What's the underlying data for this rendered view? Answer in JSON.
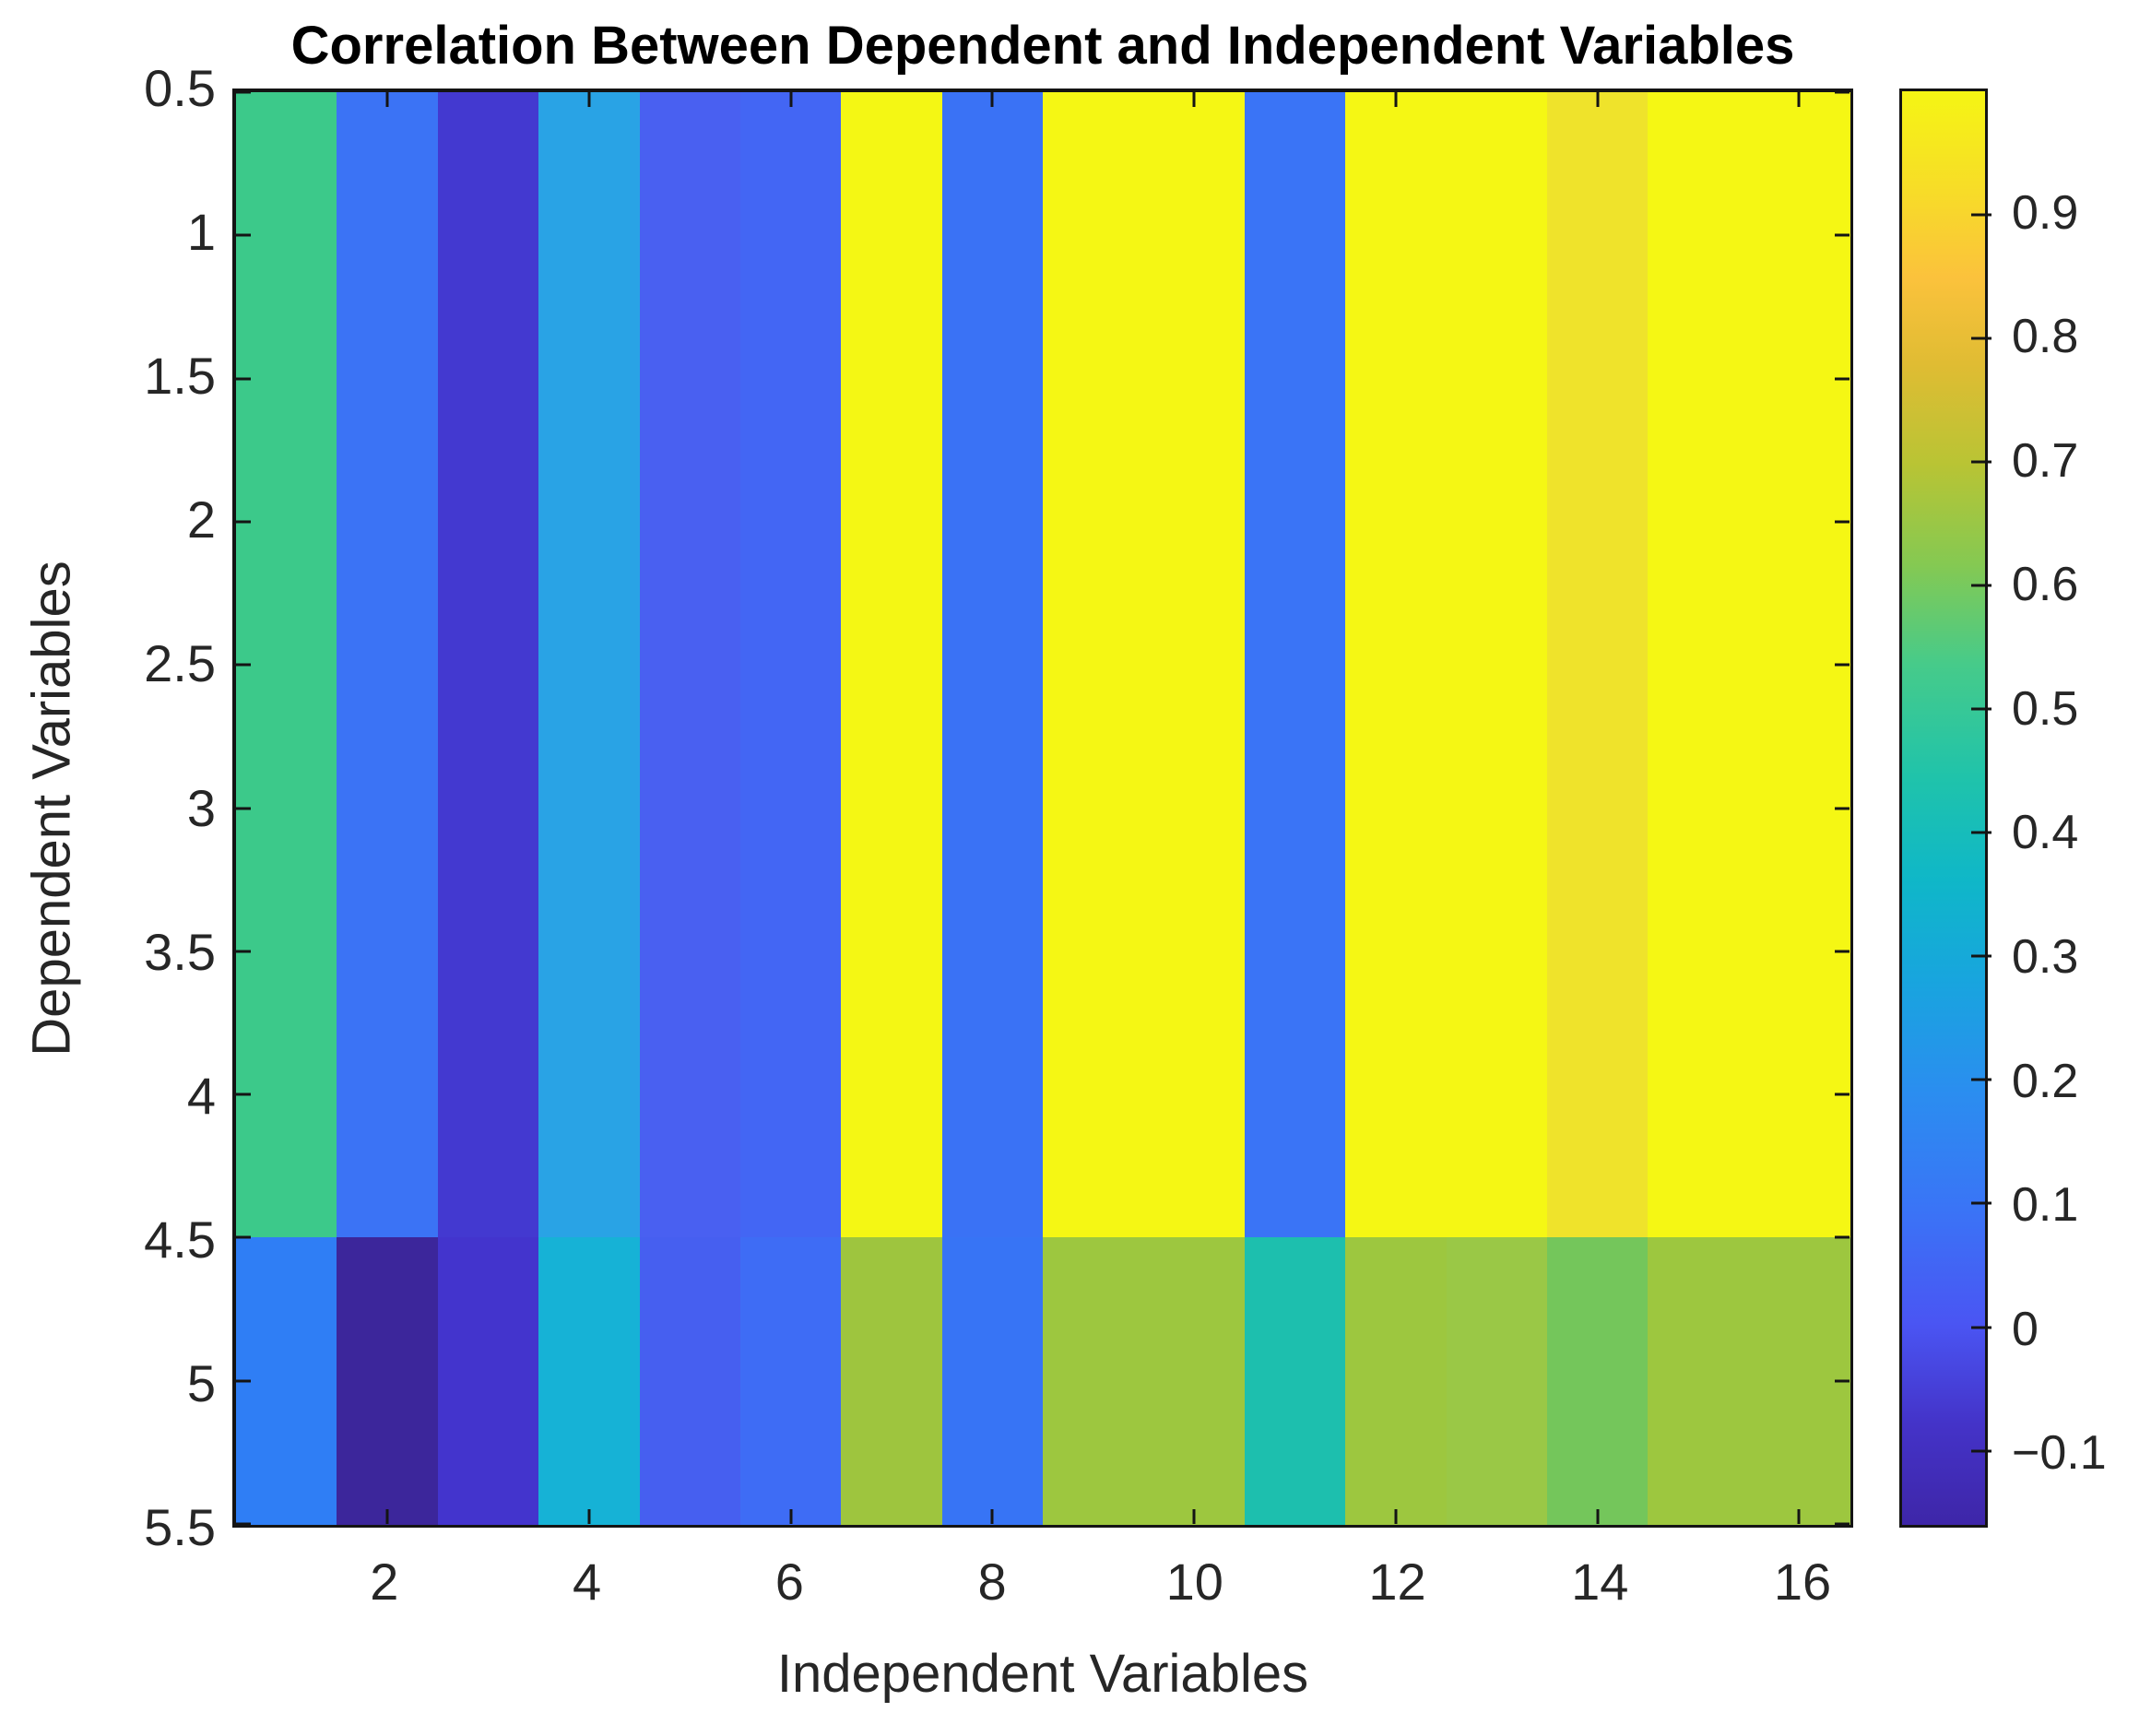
{
  "figure": {
    "title": "Correlation Between Dependent and Independent Variables",
    "xlabel": "Independent Variables",
    "ylabel": "Dependent Variables"
  },
  "colors": {
    "background": "#ffffff",
    "axis": "#141414",
    "tick_text": "#262626",
    "title_text": "#000000"
  },
  "chart_data": {
    "type": "heatmap",
    "title": "Correlation Between Dependent and Independent Variables",
    "xlabel": "Independent Variables",
    "ylabel": "Dependent Variables",
    "x_range": [
      0.5,
      16.5
    ],
    "y_range": [
      0.5,
      5.5
    ],
    "x_ticks": [
      2,
      4,
      6,
      8,
      10,
      12,
      14,
      16
    ],
    "y_ticks": [
      0.5,
      1,
      1.5,
      2,
      2.5,
      3,
      3.5,
      4,
      4.5,
      5,
      5.5
    ],
    "n_independent_vars": 16,
    "n_dependent_vars": 5,
    "colormap": "parula",
    "color_axis_range": [
      -0.16,
      1.0
    ],
    "colorbar_ticks": [
      0.9,
      0.8,
      0.7,
      0.6,
      0.5,
      0.4,
      0.3,
      0.2,
      0.1,
      0,
      -0.1
    ],
    "colorbar_position": "right",
    "grid": "off",
    "values_estimated_from_colormap": [
      [
        0.5,
        0.1,
        -0.08,
        0.27,
        0.02,
        0.05,
        0.99,
        0.1,
        0.99,
        0.99,
        0.1,
        0.99,
        0.99,
        0.93,
        0.99,
        0.99
      ],
      [
        0.5,
        0.1,
        -0.08,
        0.27,
        0.02,
        0.05,
        0.99,
        0.1,
        0.99,
        0.99,
        0.1,
        0.99,
        0.99,
        0.93,
        0.99,
        0.99
      ],
      [
        0.5,
        0.1,
        -0.08,
        0.27,
        0.02,
        0.05,
        0.99,
        0.1,
        0.99,
        0.99,
        0.1,
        0.99,
        0.99,
        0.93,
        0.99,
        0.99
      ],
      [
        0.5,
        0.1,
        -0.08,
        0.27,
        0.02,
        0.05,
        0.99,
        0.1,
        0.99,
        0.99,
        0.1,
        0.99,
        0.99,
        0.93,
        0.99,
        0.99
      ],
      [
        0.15,
        -0.15,
        -0.09,
        0.34,
        0.02,
        0.07,
        0.65,
        0.1,
        0.65,
        0.65,
        0.43,
        0.65,
        0.64,
        0.58,
        0.65,
        0.65
      ]
    ],
    "cell_colors": [
      [
        "#3CC98A",
        "#3B73F5",
        "#4339D0",
        "#29A3E5",
        "#4960F1",
        "#4366F4",
        "#F4F714",
        "#3A72F5",
        "#F5F714",
        "#F5F714",
        "#3A74F6",
        "#F5F714",
        "#F5F714",
        "#EFE32B",
        "#F5F714",
        "#F5F714"
      ],
      [
        "#3CC98A",
        "#3B73F5",
        "#4339D0",
        "#29A3E5",
        "#4960F1",
        "#4366F4",
        "#F4F714",
        "#3A72F5",
        "#F5F714",
        "#F5F714",
        "#3A74F6",
        "#F5F714",
        "#F5F714",
        "#EFE32B",
        "#F5F714",
        "#F5F714"
      ],
      [
        "#3CC98A",
        "#3B73F5",
        "#4339D0",
        "#29A3E5",
        "#4960F1",
        "#4366F4",
        "#F4F714",
        "#3A72F5",
        "#F5F714",
        "#F5F714",
        "#3A74F6",
        "#F5F714",
        "#F5F714",
        "#EFE32B",
        "#F5F714",
        "#F5F714"
      ],
      [
        "#3CC98A",
        "#3B73F5",
        "#4339D0",
        "#29A3E5",
        "#4960F1",
        "#4366F4",
        "#F4F714",
        "#3A72F5",
        "#F5F714",
        "#F5F714",
        "#3A74F6",
        "#F5F714",
        "#F5F714",
        "#EFE32B",
        "#F5F714",
        "#F5F714"
      ],
      [
        "#2F7EF5",
        "#3C269B",
        "#4334CD",
        "#16B2D6",
        "#465FF0",
        "#3E6CF5",
        "#9EC53E",
        "#3774F5",
        "#9DC73F",
        "#9DC73F",
        "#1DBFAE",
        "#9DC73F",
        "#9AC846",
        "#74C65B",
        "#9DC73F",
        "#9DC73F"
      ]
    ],
    "colorbar_gradient": [
      [
        0.0,
        "#3E26A8"
      ],
      [
        0.07,
        "#4433C8"
      ],
      [
        0.14,
        "#4A55F3"
      ],
      [
        0.22,
        "#3A74F6"
      ],
      [
        0.3,
        "#2B8DF0"
      ],
      [
        0.38,
        "#18A5DE"
      ],
      [
        0.45,
        "#0FB7C8"
      ],
      [
        0.52,
        "#1FC3AB"
      ],
      [
        0.6,
        "#46CB8A"
      ],
      [
        0.67,
        "#85C952"
      ],
      [
        0.74,
        "#B9C434"
      ],
      [
        0.81,
        "#E0BC33"
      ],
      [
        0.87,
        "#FBC23C"
      ],
      [
        0.93,
        "#F7DC28"
      ],
      [
        1.0,
        "#F5F514"
      ]
    ]
  }
}
